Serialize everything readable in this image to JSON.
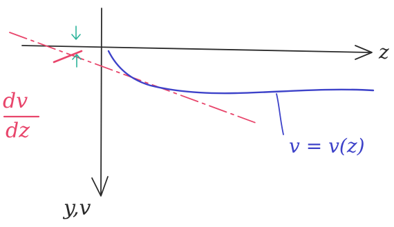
{
  "labels": {
    "z_axis": "z",
    "y_axis": "y,v",
    "curve": "v = v(z)",
    "slope_numerator": "dv",
    "slope_denominator": "dz"
  },
  "colors": {
    "axes": "#2a2a2a",
    "curve": "#3d42c9",
    "tangent": "#e8456b",
    "gap_arrows": "#2bb39a"
  }
}
